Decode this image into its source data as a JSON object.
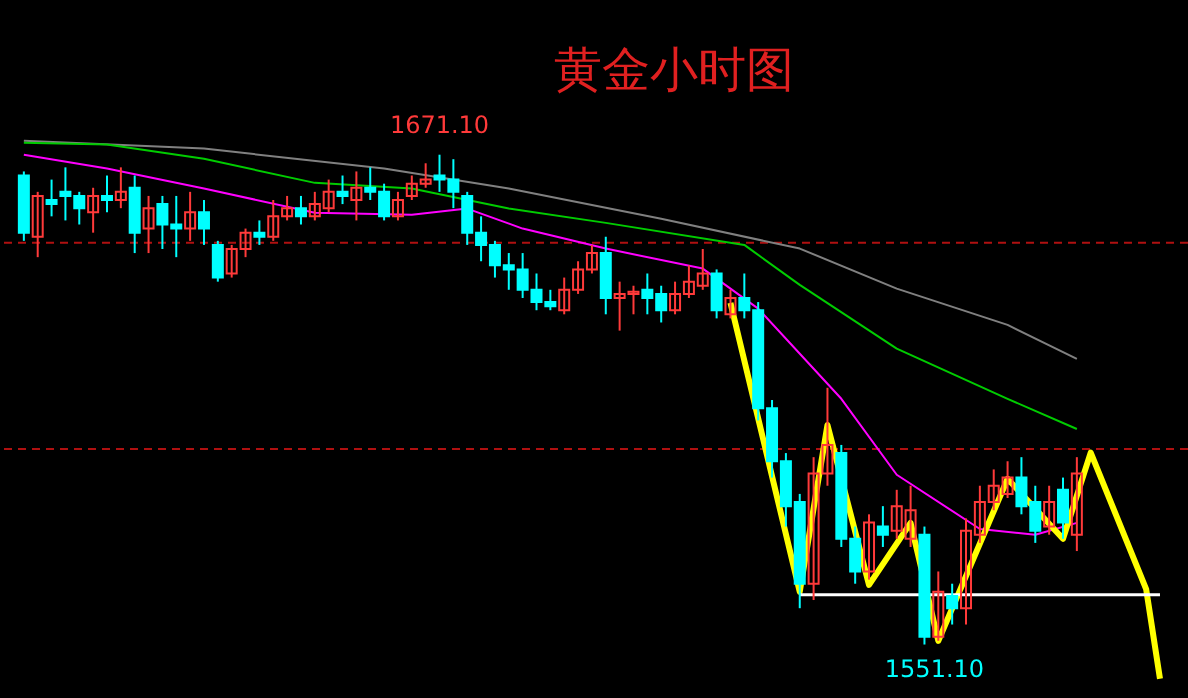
{
  "chart_data": {
    "type": "candlestick",
    "title": "黄金小时图",
    "categories": [
      null,
      null,
      null,
      null,
      null,
      null,
      null,
      null,
      null,
      null,
      null,
      null,
      null,
      null,
      null,
      null,
      null,
      null,
      null,
      null,
      null,
      null,
      null,
      null,
      null,
      null,
      null,
      null,
      null,
      null,
      null,
      null,
      null,
      null,
      null,
      null,
      null,
      null,
      null,
      null,
      null,
      null,
      null,
      null,
      null,
      null,
      null,
      null,
      null,
      null,
      null,
      null,
      null,
      null,
      null,
      null,
      null,
      null,
      null,
      null,
      null,
      null,
      null,
      null,
      null,
      null,
      null,
      null,
      null,
      null,
      null,
      null,
      null,
      null,
      null,
      null,
      null,
      null,
      null,
      null,
      null,
      null,
      null
    ],
    "ohlc": [
      [
        1666,
        1667,
        1650,
        1652
      ],
      [
        1651,
        1662,
        1646,
        1661
      ],
      [
        1660,
        1665,
        1656,
        1659
      ],
      [
        1662,
        1668,
        1655,
        1661
      ],
      [
        1661,
        1662,
        1654,
        1658
      ],
      [
        1657,
        1663,
        1652,
        1661
      ],
      [
        1661,
        1666,
        1657,
        1660
      ],
      [
        1660,
        1668,
        1658,
        1662
      ],
      [
        1663,
        1666,
        1647,
        1652
      ],
      [
        1653,
        1661,
        1647,
        1658
      ],
      [
        1659,
        1661,
        1648,
        1654
      ],
      [
        1654,
        1661,
        1646,
        1653
      ],
      [
        1653,
        1662,
        1650,
        1657
      ],
      [
        1657,
        1660,
        1649,
        1653
      ],
      [
        1649,
        1650,
        1640,
        1641
      ],
      [
        1642,
        1649,
        1641,
        1648
      ],
      [
        1648,
        1653,
        1646,
        1652
      ],
      [
        1652,
        1655,
        1649,
        1651
      ],
      [
        1651,
        1660,
        1650,
        1656
      ],
      [
        1656,
        1661,
        1655,
        1658
      ],
      [
        1658,
        1661,
        1654,
        1656
      ],
      [
        1656,
        1662,
        1655,
        1659
      ],
      [
        1658,
        1665,
        1657,
        1662
      ],
      [
        1662,
        1666,
        1659,
        1661
      ],
      [
        1660,
        1667,
        1655,
        1663
      ],
      [
        1663,
        1668,
        1660,
        1662
      ],
      [
        1662,
        1664,
        1655,
        1656
      ],
      [
        1656,
        1662,
        1655,
        1660
      ],
      [
        1661,
        1666,
        1660,
        1664
      ],
      [
        1664,
        1669,
        1663,
        1665
      ],
      [
        1666,
        1671.1,
        1662,
        1665
      ],
      [
        1665,
        1670,
        1658,
        1662
      ],
      [
        1661,
        1662,
        1649,
        1652
      ],
      [
        1652,
        1656,
        1645,
        1649
      ],
      [
        1649,
        1650,
        1641,
        1644
      ],
      [
        1644,
        1647,
        1638,
        1643
      ],
      [
        1643,
        1647,
        1636,
        1638
      ],
      [
        1638,
        1642,
        1633,
        1635
      ],
      [
        1635,
        1638,
        1633,
        1634
      ],
      [
        1633,
        1641,
        1632,
        1638
      ],
      [
        1638,
        1645,
        1637,
        1643
      ],
      [
        1643,
        1649,
        1642,
        1647
      ],
      [
        1647,
        1651,
        1632,
        1636
      ],
      [
        1636,
        1640,
        1628,
        1637
      ],
      [
        1637,
        1639,
        1632,
        1637.5
      ],
      [
        1638,
        1642,
        1632,
        1636
      ],
      [
        1637,
        1639,
        1630,
        1633
      ],
      [
        1633,
        1640,
        1632,
        1637
      ],
      [
        1637,
        1644,
        1636,
        1640
      ],
      [
        1639,
        1648,
        1638,
        1642
      ],
      [
        1642,
        1643,
        1631,
        1633
      ],
      [
        1632,
        1638,
        1631,
        1636
      ],
      [
        1636,
        1642,
        1631,
        1633
      ],
      [
        1633,
        1635,
        1606,
        1609
      ],
      [
        1609,
        1611,
        1592,
        1596
      ],
      [
        1596,
        1598,
        1580,
        1585
      ],
      [
        1586,
        1588,
        1560,
        1566
      ],
      [
        1566,
        1597,
        1562,
        1593
      ],
      [
        1593,
        1614,
        1590,
        1600
      ],
      [
        1598,
        1600,
        1575,
        1577
      ],
      [
        1577,
        1580,
        1566,
        1569
      ],
      [
        1569,
        1583,
        1567,
        1581
      ],
      [
        1580,
        1585,
        1575,
        1578
      ],
      [
        1579,
        1589,
        1577,
        1585
      ],
      [
        1577,
        1590,
        1575,
        1584
      ],
      [
        1578,
        1580,
        1551.1,
        1553
      ],
      [
        1553,
        1569,
        1552,
        1564
      ],
      [
        1563,
        1566,
        1556,
        1560
      ],
      [
        1560,
        1582,
        1556,
        1579
      ],
      [
        1578,
        1590,
        1576,
        1586
      ],
      [
        1586,
        1594,
        1584,
        1590
      ],
      [
        1588,
        1596,
        1587,
        1592
      ],
      [
        1592,
        1597,
        1583,
        1585
      ],
      [
        1586,
        1590,
        1576,
        1579
      ],
      [
        1580,
        1590,
        1578,
        1586
      ],
      [
        1589,
        1592,
        1577,
        1581
      ],
      [
        1578,
        1597,
        1574,
        1593
      ],
      null,
      null,
      null,
      null,
      null,
      null
    ],
    "colors": [
      "#00ffff",
      "#ff3a3a",
      "#00ffff",
      "#00ffff",
      "#00ffff",
      "#ff3a3a",
      "#00ffff",
      "#ff3a3a",
      "#00ffff",
      "#ff3a3a",
      "#00ffff",
      "#00ffff",
      "#ff3a3a",
      "#00ffff",
      "#00ffff",
      "#ff3a3a",
      "#ff3a3a",
      "#00ffff",
      "#ff3a3a",
      "#ff3a3a",
      "#00ffff",
      "#ff3a3a",
      "#ff3a3a",
      "#00ffff",
      "#ff3a3a",
      "#00ffff",
      "#00ffff",
      "#ff3a3a",
      "#ff3a3a",
      "#ff3a3a",
      "#00ffff",
      "#00ffff",
      "#00ffff",
      "#00ffff",
      "#00ffff",
      "#00ffff",
      "#00ffff",
      "#00ffff",
      "#00ffff",
      "#ff3a3a",
      "#ff3a3a",
      "#ff3a3a",
      "#00ffff",
      "#ff3a3a",
      "#ff3a3a",
      "#00ffff",
      "#00ffff",
      "#ff3a3a",
      "#ff3a3a",
      "#ff3a3a",
      "#00ffff",
      "#ff3a3a",
      "#00ffff",
      "#00ffff",
      "#00ffff",
      "#00ffff",
      "#00ffff",
      "#ff3a3a",
      "#ff3a3a",
      "#00ffff",
      "#00ffff",
      "#ff3a3a",
      "#00ffff",
      "#ff3a3a",
      "#ff3a3a",
      "#00ffff",
      "#ff3a3a",
      "#00ffff",
      "#ff3a3a",
      "#ff3a3a",
      "#ff3a3a",
      "#ff3a3a",
      "#00ffff",
      "#00ffff",
      "#ff3a3a",
      "#00ffff",
      "#ff3a3a",
      null,
      null,
      null,
      null,
      null,
      null
    ],
    "series": [
      {
        "type": "line",
        "color": "#808080",
        "values": [
          1674.5,
          null,
          null,
          null,
          null,
          null,
          null,
          null,
          null,
          null,
          null,
          null,
          null,
          1672.6,
          null,
          null,
          null,
          null,
          null,
          null,
          null,
          null,
          null,
          null,
          null,
          null,
          1667.7,
          null,
          null,
          null,
          null,
          null,
          null,
          null,
          null,
          1662.8,
          null,
          null,
          null,
          null,
          null,
          null,
          null,
          null,
          null,
          null,
          1655.4,
          null,
          null,
          null,
          null,
          null,
          null,
          null,
          null,
          null,
          1648.1,
          null,
          null,
          null,
          null,
          null,
          null,
          1638.3,
          null,
          null,
          null,
          null,
          null,
          null,
          null,
          1629.4,
          null,
          null,
          null,
          null,
          1621.1,
          null,
          null,
          null,
          null,
          null,
          null
        ]
      },
      {
        "type": "line",
        "color": "#00cc00",
        "values": [
          1674,
          null,
          null,
          null,
          null,
          null,
          1673.6,
          null,
          null,
          null,
          null,
          null,
          null,
          1670.1,
          null,
          null,
          null,
          null,
          null,
          null,
          null,
          1664.2,
          null,
          null,
          null,
          null,
          null,
          null,
          1662.8,
          null,
          null,
          null,
          null,
          null,
          null,
          1657.9,
          null,
          null,
          null,
          null,
          null,
          null,
          1654.4,
          null,
          null,
          null,
          null,
          null,
          null,
          null,
          null,
          null,
          1649,
          null,
          null,
          null,
          1639.2,
          null,
          null,
          null,
          null,
          null,
          null,
          1623.6,
          null,
          null,
          null,
          null,
          null,
          null,
          null,
          1611.3,
          null,
          null,
          null,
          null,
          1603.9,
          null,
          null,
          null,
          null,
          null,
          null
        ]
      },
      {
        "type": "line",
        "color": "#ff00ff",
        "values": [
          1671.1,
          null,
          null,
          null,
          null,
          null,
          1667.7,
          null,
          null,
          null,
          null,
          null,
          null,
          1662.8,
          null,
          null,
          null,
          null,
          null,
          null,
          null,
          1656.9,
          null,
          null,
          null,
          null,
          null,
          null,
          1656.4,
          null,
          null,
          null,
          1657.9,
          null,
          null,
          null,
          1653,
          null,
          null,
          null,
          null,
          null,
          1648.1,
          null,
          null,
          null,
          null,
          null,
          null,
          1643.2,
          null,
          null,
          null,
          1633.4,
          null,
          null,
          null,
          null,
          null,
          1611.3,
          null,
          null,
          null,
          1592.7,
          null,
          null,
          null,
          null,
          null,
          1579.4,
          null,
          null,
          null,
          1578,
          null,
          null,
          1580.9,
          null,
          null,
          null,
          null,
          null,
          null
        ]
      },
      {
        "type": "line",
        "color": "#ffff00",
        "values": [
          null,
          null,
          null,
          null,
          null,
          null,
          null,
          null,
          null,
          null,
          null,
          null,
          null,
          null,
          null,
          null,
          null,
          null,
          null,
          null,
          null,
          null,
          null,
          null,
          null,
          null,
          null,
          null,
          null,
          null,
          null,
          null,
          null,
          null,
          null,
          null,
          null,
          null,
          null,
          null,
          null,
          null,
          null,
          null,
          null,
          null,
          null,
          null,
          null,
          null,
          null,
          1634.8,
          null,
          null,
          null,
          null,
          1564,
          null,
          1604.9,
          null,
          null,
          1565.7,
          null,
          null,
          1580.9,
          null,
          1552,
          null,
          null,
          null,
          null,
          1591.7,
          null,
          null,
          null,
          1577,
          null,
          1598.1,
          null,
          null,
          null,
          1564.7,
          1542.7
        ]
      },
      {
        "type": "line",
        "color": "#ffffff",
        "values": [
          null,
          null,
          null,
          null,
          null,
          null,
          null,
          null,
          null,
          null,
          null,
          null,
          null,
          null,
          null,
          null,
          null,
          null,
          null,
          null,
          null,
          null,
          null,
          null,
          null,
          null,
          null,
          null,
          null,
          null,
          null,
          null,
          null,
          null,
          null,
          null,
          null,
          null,
          null,
          null,
          null,
          null,
          null,
          null,
          null,
          null,
          null,
          null,
          null,
          null,
          null,
          null,
          null,
          null,
          null,
          null,
          1563.3,
          null,
          null,
          null,
          null,
          null,
          null,
          null,
          null,
          null,
          null,
          null,
          null,
          null,
          null,
          null,
          null,
          null,
          null,
          null,
          null,
          null,
          null,
          null,
          null,
          null,
          1563.3
        ]
      }
    ],
    "ref_lines": [
      {
        "axis": "y",
        "value": 1649.5,
        "color": "#b01010",
        "line_style": "dashed"
      },
      {
        "axis": "y",
        "value": 1599,
        "color": "#b01010",
        "line_style": "dashed"
      }
    ],
    "annotations": [
      "1671.10",
      "1551.10"
    ],
    "ylim": [
      1538,
      1709
    ],
    "tick_labels": false,
    "grid": false
  }
}
